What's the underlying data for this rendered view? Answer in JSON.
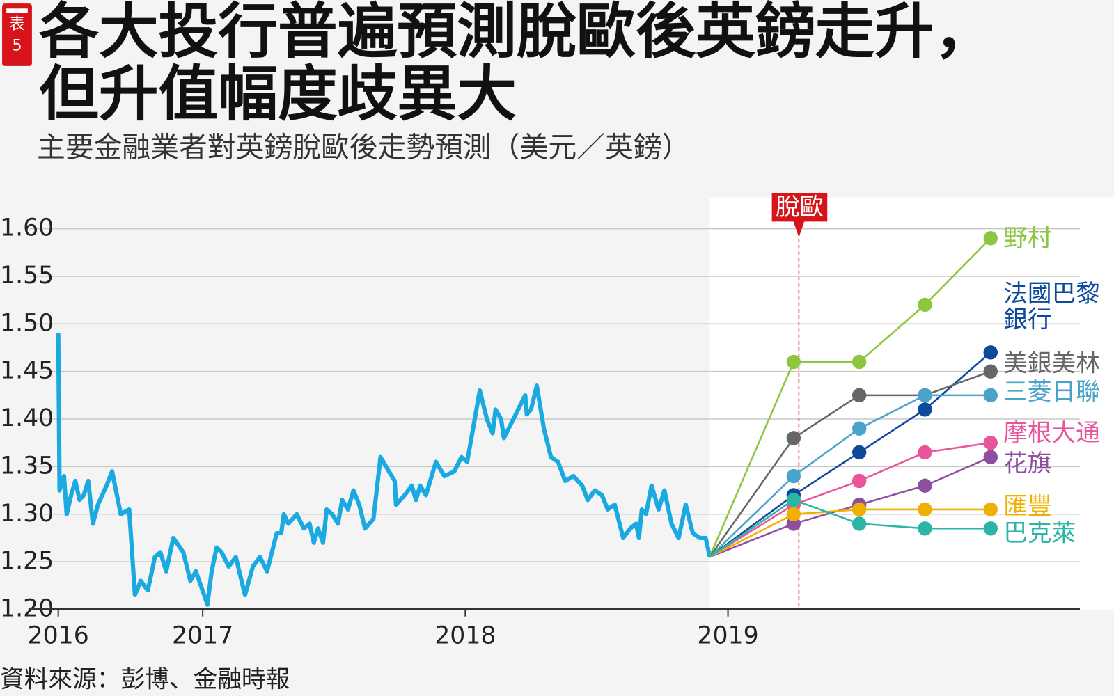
{
  "tag": "表5",
  "chart_data": {
    "type": "line",
    "title": "各大投行普遍預測脫歐後英鎊走升，但升值幅度歧異大",
    "subtitle": "主要金融業者對英鎊脫歐後走勢預測（美元／英鎊）",
    "source": "資料來源：彭博、金融時報",
    "annotation": {
      "text": "脫歐",
      "x": 2019.27
    },
    "xlim": [
      2016.45,
      2020.34
    ],
    "xticks": [
      {
        "value": 2016.45,
        "label": "2016"
      },
      2017,
      2018,
      2019
    ],
    "ylim": [
      1.2,
      1.6
    ],
    "yticks": [
      {
        "value": 1.2,
        "label": "1.20"
      },
      1.25,
      {
        "value": 1.3,
        "label": "1.30"
      },
      1.35,
      {
        "value": 1.4,
        "label": "1.40"
      },
      1.45,
      {
        "value": 1.5,
        "label": "1.50"
      },
      1.55,
      {
        "value": 1.6,
        "label": "1.60"
      }
    ],
    "grid": true,
    "series": [
      {
        "color": "#1aa9e0",
        "x": [
          2016.45,
          2016.455,
          2016.472,
          2016.482,
          2016.499,
          2016.515,
          2016.531,
          2016.547,
          2016.564,
          2016.582,
          2016.601,
          2016.634,
          2016.655,
          2016.688,
          2016.72,
          2016.742,
          2016.764,
          2016.791,
          2016.818,
          2016.839,
          2016.861,
          2016.888,
          2016.926,
          2016.953,
          2016.974,
          2017.018,
          2017.034,
          2017.053,
          2017.072,
          2017.099,
          2017.126,
          2017.161,
          2017.191,
          2017.218,
          2017.245,
          2017.282,
          2017.299,
          2017.309,
          2017.326,
          2017.358,
          2017.385,
          2017.407,
          2017.423,
          2017.439,
          2017.458,
          2017.472,
          2017.493,
          2017.515,
          2017.531,
          2017.553,
          2017.574,
          2017.596,
          2017.618,
          2017.65,
          2017.677,
          2017.709,
          2017.731,
          2017.736,
          2017.769,
          2017.796,
          2017.812,
          2017.828,
          2017.85,
          2017.888,
          2017.92,
          2017.958,
          2017.985,
          2018.007,
          2018.023,
          2018.055,
          2018.082,
          2018.104,
          2018.115,
          2018.136,
          2018.147,
          2018.174,
          2018.201,
          2018.228,
          2018.234,
          2018.25,
          2018.272,
          2018.299,
          2018.326,
          2018.353,
          2018.38,
          2018.412,
          2018.445,
          2018.466,
          2018.493,
          2018.52,
          2018.542,
          2018.569,
          2018.601,
          2018.628,
          2018.65,
          2018.661,
          2018.672,
          2018.688,
          2018.709,
          2018.736,
          2018.758,
          2018.785,
          2018.812,
          2018.839,
          2018.866,
          2018.893,
          2018.915,
          2018.931
        ],
        "values": [
          1.49,
          1.325,
          1.34,
          1.3,
          1.32,
          1.335,
          1.315,
          1.32,
          1.335,
          1.29,
          1.31,
          1.33,
          1.345,
          1.3,
          1.305,
          1.215,
          1.23,
          1.22,
          1.255,
          1.26,
          1.24,
          1.275,
          1.26,
          1.23,
          1.24,
          1.205,
          1.24,
          1.265,
          1.26,
          1.245,
          1.255,
          1.215,
          1.245,
          1.255,
          1.24,
          1.28,
          1.28,
          1.3,
          1.29,
          1.3,
          1.285,
          1.29,
          1.27,
          1.285,
          1.27,
          1.305,
          1.3,
          1.29,
          1.315,
          1.305,
          1.325,
          1.31,
          1.285,
          1.295,
          1.36,
          1.345,
          1.335,
          1.31,
          1.32,
          1.33,
          1.315,
          1.33,
          1.32,
          1.355,
          1.34,
          1.345,
          1.36,
          1.355,
          1.38,
          1.43,
          1.4,
          1.385,
          1.41,
          1.4,
          1.38,
          1.395,
          1.41,
          1.425,
          1.405,
          1.41,
          1.435,
          1.39,
          1.36,
          1.355,
          1.335,
          1.34,
          1.33,
          1.315,
          1.325,
          1.32,
          1.305,
          1.31,
          1.275,
          1.285,
          1.29,
          1.275,
          1.305,
          1.3,
          1.33,
          1.305,
          1.325,
          1.29,
          1.275,
          1.31,
          1.28,
          1.275,
          1.275,
          1.255
        ]
      },
      {
        "name": "野村",
        "color": "#8dc63f",
        "x": [
          2018.93,
          2019.25,
          2019.5,
          2019.75,
          2020.0
        ],
        "values": [
          1.255,
          1.46,
          1.46,
          1.52,
          1.59
        ]
      },
      {
        "name": "法國巴黎銀行",
        "color": "#0d4a9c",
        "x": [
          2018.93,
          2019.25,
          2019.5,
          2019.75,
          2020.0
        ],
        "values": [
          1.255,
          1.32,
          1.365,
          1.41,
          1.47
        ]
      },
      {
        "name": "美銀美林",
        "color": "#666666",
        "x": [
          2018.93,
          2019.25,
          2019.5,
          2019.75,
          2020.0
        ],
        "values": [
          1.255,
          1.38,
          1.425,
          1.425,
          1.45
        ]
      },
      {
        "name": "三菱日聯",
        "color": "#4aa3c8",
        "x": [
          2018.93,
          2019.25,
          2019.5,
          2019.75,
          2020.0
        ],
        "values": [
          1.255,
          1.34,
          1.39,
          1.425,
          1.425
        ]
      },
      {
        "name": "摩根大通",
        "color": "#e8559b",
        "x": [
          2018.93,
          2019.25,
          2019.5,
          2019.75,
          2020.0
        ],
        "values": [
          1.255,
          1.31,
          1.335,
          1.365,
          1.375
        ]
      },
      {
        "name": "花旗",
        "color": "#8e4fa0",
        "x": [
          2018.93,
          2019.25,
          2019.5,
          2019.75,
          2020.0
        ],
        "values": [
          1.255,
          1.29,
          1.31,
          1.33,
          1.36
        ]
      },
      {
        "name": "匯豐",
        "color": "#f0b000",
        "x": [
          2018.93,
          2019.25,
          2019.5,
          2019.75,
          2020.0
        ],
        "values": [
          1.255,
          1.3,
          1.305,
          1.305,
          1.305
        ]
      },
      {
        "name": "巴克萊",
        "color": "#2bb5a5",
        "x": [
          2018.93,
          2019.25,
          2019.5,
          2019.75,
          2020.0
        ],
        "values": [
          1.255,
          1.315,
          1.29,
          1.285,
          1.285
        ]
      }
    ]
  }
}
